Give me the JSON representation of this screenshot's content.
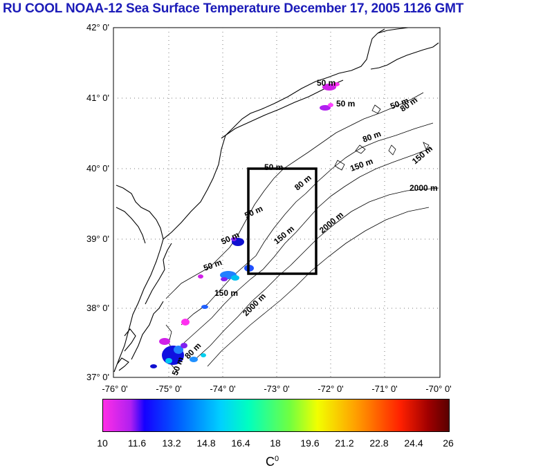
{
  "title": "RU COOL  NOAA-12 Sea Surface Temperature December 17, 2005 1126 GMT",
  "map": {
    "lat_labels": [
      "42° 0'",
      "41° 0'",
      "40° 0'",
      "39° 0'",
      "38° 0'",
      "37° 0'"
    ],
    "lon_labels": [
      "-76° 0'",
      "-75° 0'",
      "-74° 0'",
      "-73° 0'",
      "-72° 0'",
      "-71° 0'",
      "-70° 0'"
    ],
    "contour_labels": [
      "50 m",
      "50 m",
      "50 m",
      "80 m",
      "80 m",
      "150 m",
      "150 m",
      "2000 m",
      "50 m",
      "80 m",
      "50 m",
      "150 m",
      "2000 m",
      "50 m",
      "50 m",
      "150 m",
      "2000 m",
      "50 m",
      "80 m"
    ]
  },
  "colorbar": {
    "ticks": [
      "10",
      "11.6",
      "13.2",
      "14.8",
      "16.4",
      "18",
      "19.6",
      "21.2",
      "22.8",
      "24.4",
      "26"
    ],
    "unit": "C",
    "unit_sup": "0"
  }
}
